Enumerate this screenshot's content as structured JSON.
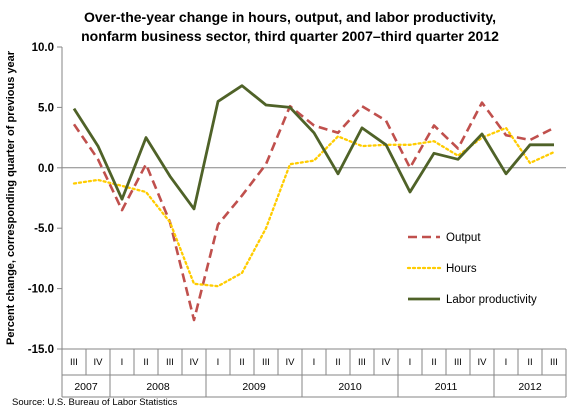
{
  "chart_data": {
    "type": "line",
    "title": "Over-the-year change in hours, output, and labor productivity, nonfarm business sector, third quarter 2007–third quarter 2012",
    "title_lines": [
      "Over-the-year change in hours, output, and labor productivity,",
      "nonfarm business sector, third quarter 2007–third quarter 2012"
    ],
    "ylabel": "Percent change, corresponding quarter of previous year",
    "ylim": [
      -15.0,
      10.0
    ],
    "yticks": [
      10.0,
      5.0,
      0.0,
      -5.0,
      -10.0,
      -15.0
    ],
    "ytick_labels": [
      "10.0",
      "5.0",
      "0.0",
      "-5.0",
      "-10.0",
      "-15.0"
    ],
    "quarter_labels": [
      "III",
      "IV",
      "I",
      "II",
      "III",
      "IV",
      "I",
      "II",
      "III",
      "IV",
      "I",
      "II",
      "III",
      "IV",
      "I",
      "II",
      "III",
      "IV",
      "I",
      "II",
      "III"
    ],
    "year_groups": [
      {
        "label": "2007",
        "count": 2
      },
      {
        "label": "2008",
        "count": 4
      },
      {
        "label": "2009",
        "count": 4
      },
      {
        "label": "2010",
        "count": 4
      },
      {
        "label": "2011",
        "count": 4
      },
      {
        "label": "2012",
        "count": 3
      }
    ],
    "grid": false,
    "legend_position": "right-middle",
    "series": [
      {
        "name": "Output",
        "color": "#c0504d",
        "dash": "dashed",
        "values": [
          3.6,
          0.7,
          -3.5,
          0.3,
          -4.5,
          -12.6,
          -4.7,
          -2.3,
          0.3,
          5.1,
          3.5,
          2.9,
          5.1,
          3.9,
          0.0,
          3.5,
          1.6,
          5.4,
          2.7,
          2.3,
          3.3
        ]
      },
      {
        "name": "Hours",
        "color": "#ffcc00",
        "dash": "dotted",
        "values": [
          -1.3,
          -1.0,
          -1.5,
          -2.0,
          -4.5,
          -9.6,
          -9.8,
          -8.7,
          -5.0,
          0.3,
          0.6,
          2.6,
          1.8,
          1.9,
          1.9,
          2.2,
          1.0,
          2.5,
          3.3,
          0.4,
          1.3
        ]
      },
      {
        "name": "Labor productivity",
        "color": "#4f6228",
        "dash": "solid",
        "values": [
          4.9,
          1.8,
          -2.6,
          2.5,
          -0.7,
          -3.4,
          5.5,
          6.8,
          5.2,
          5.0,
          2.9,
          -0.5,
          3.3,
          1.9,
          -2.0,
          1.2,
          0.7,
          2.8,
          -0.5,
          1.9,
          1.9
        ]
      }
    ],
    "source": "Source:  U.S. Bureau of Labor Statistics"
  }
}
